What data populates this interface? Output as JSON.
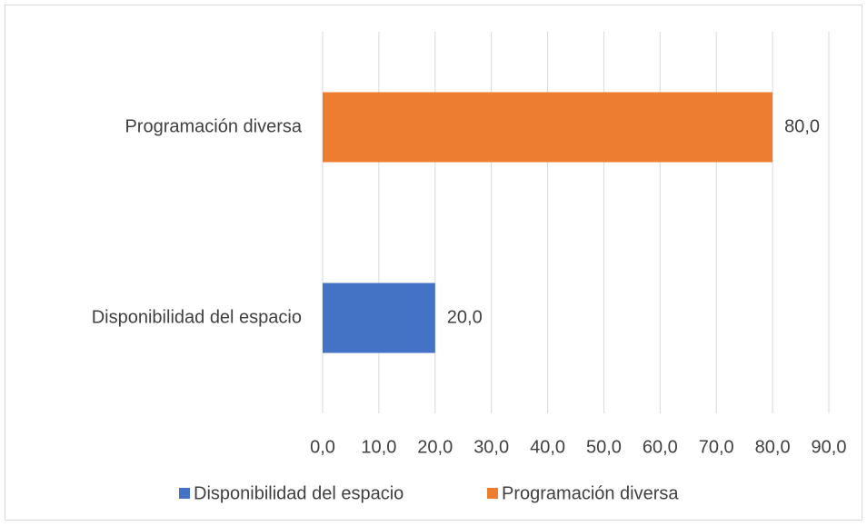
{
  "chart_data": {
    "type": "bar",
    "orientation": "horizontal",
    "categories": [
      "Disponibilidad del espacio",
      "Programación diversa"
    ],
    "series": [
      {
        "name": "Disponibilidad del espacio",
        "color": "#4472c4",
        "values": [
          20,
          null
        ],
        "value_labels": [
          "20,0",
          null
        ]
      },
      {
        "name": "Programación diversa",
        "color": "#ed7d31",
        "values": [
          null,
          80
        ],
        "value_labels": [
          null,
          "80,0"
        ]
      }
    ],
    "xlim": [
      0,
      90
    ],
    "xticks": [
      {
        "value": 0,
        "label": "0,0"
      },
      {
        "value": 10,
        "label": "10,0"
      },
      {
        "value": 20,
        "label": "20,0"
      },
      {
        "value": 30,
        "label": "30,0"
      },
      {
        "value": 40,
        "label": "40,0"
      },
      {
        "value": 50,
        "label": "50,0"
      },
      {
        "value": 60,
        "label": "60,0"
      },
      {
        "value": 70,
        "label": "70,0"
      },
      {
        "value": 80,
        "label": "80,0"
      },
      {
        "value": 90,
        "label": "90,0"
      }
    ],
    "grid": true,
    "legend": "bottom"
  }
}
